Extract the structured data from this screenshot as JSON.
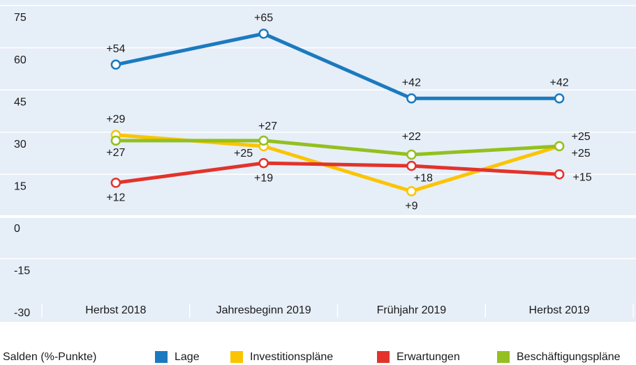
{
  "chart_data": {
    "type": "line",
    "categories": [
      "Herbst 2018",
      "Jahresbeginn 2019",
      "Frühjahr 2019",
      "Herbst 2019"
    ],
    "legend_title": "Salden (%-Punkte)",
    "series": [
      {
        "name": "Lage",
        "color": "#1b7abf",
        "values": [
          54,
          65,
          42,
          42
        ],
        "value_labels": [
          "+54",
          "+65",
          "+42",
          "+42"
        ]
      },
      {
        "name": "Investitionspläne",
        "color": "#fbc400",
        "values": [
          29,
          25,
          9,
          25
        ],
        "value_labels": [
          "+29",
          "+25",
          "+9",
          "+25"
        ]
      },
      {
        "name": "Erwartungen",
        "color": "#e2332b",
        "values": [
          12,
          19,
          18,
          15
        ],
        "value_labels": [
          "+12",
          "+19",
          "+18",
          "+15"
        ]
      },
      {
        "name": "Beschäftigungspläne",
        "color": "#93c01f",
        "values": [
          27,
          27,
          22,
          25
        ],
        "value_labels": [
          "+27",
          "+27",
          "+22",
          "+25"
        ]
      }
    ],
    "ylim": [
      -30,
      75
    ],
    "yticks": [
      75,
      60,
      45,
      30,
      15,
      0,
      -15,
      -30
    ],
    "grid": true,
    "legend": "bottom"
  }
}
